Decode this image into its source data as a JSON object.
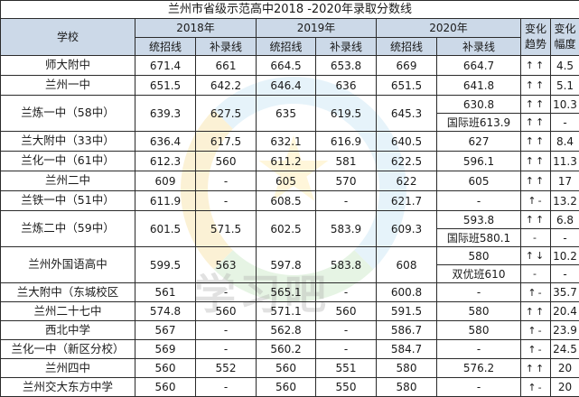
{
  "title": "兰州市省级示范高中2018 -2020年录取分数线",
  "headers": {
    "school": "学校",
    "y2018": "2018年",
    "y2019": "2019年",
    "y2020": "2020年",
    "trend": "变化\n趋势",
    "range": "变化\n幅度",
    "tongzhao": "统招线",
    "bulu": "补录线"
  },
  "watermark": "学习吧",
  "rows": [
    {
      "school": "师大附中",
      "t18": "671.4",
      "b18": "661",
      "t19": "664.5",
      "b19": "653.8",
      "t20": "669",
      "b20": "664.7",
      "trend": "↑↑",
      "range": "4.5"
    },
    {
      "school": "兰州一中",
      "t18": "651.5",
      "b18": "642.2",
      "t19": "646.4",
      "b19": "636",
      "t20": "651.5",
      "b20": "641.8",
      "trend": "↑↑",
      "range": "5.1"
    },
    {
      "school": "兰炼一中（58中）",
      "t18": "639.3",
      "b18": "627.5",
      "t19": "635",
      "b19": "619.5",
      "t20": "645.3",
      "b20a": "630.8",
      "b20b": "国际班613.9",
      "trend_a": "↑↑",
      "trend_b": "↑↑",
      "range_a": "10.3",
      "range_b": "-"
    },
    {
      "school": "兰大附中（33中）",
      "t18": "636.4",
      "b18": "617.5",
      "t19": "632.1",
      "b19": "616.9",
      "t20": "640.5",
      "b20": "627",
      "trend": "↑↑",
      "range": "8.4"
    },
    {
      "school": "兰化一中（61中）",
      "t18": "612.3",
      "b18": "560",
      "t19": "611.2",
      "b19": "581",
      "t20": "622.5",
      "b20": "596.1",
      "trend": "↑↑",
      "range": "11.3"
    },
    {
      "school": "兰州二中",
      "t18": "609",
      "b18": "-",
      "t19": "605",
      "b19": "570",
      "t20": "622",
      "b20": "605",
      "trend": "↑↑",
      "range": "17"
    },
    {
      "school": "兰铁一中（51中）",
      "t18": "611.9",
      "b18": "-",
      "t19": "608.5",
      "b19": "-",
      "t20": "621.7",
      "b20": "-",
      "trend": "↑-",
      "range": "13.2"
    },
    {
      "school": "兰炼二中（59中）",
      "t18": "601.5",
      "b18": "571.5",
      "t19": "602.5",
      "b19": "583.9",
      "t20": "609.3",
      "b20a": "593.8",
      "b20b": "国际班580.1",
      "trend_a": "↑↑",
      "trend_b": "-",
      "range_a": "6.8",
      "range_b": "-"
    },
    {
      "school": "兰州外国语高中",
      "t18": "599.5",
      "b18": "563",
      "t19": "597.8",
      "b19": "583.8",
      "t20": "608",
      "b20a": "580",
      "b20b": "双优班610",
      "trend_a": "↑↓",
      "trend_b": "-",
      "range_a": "10.2",
      "range_b": "-"
    },
    {
      "school": "兰大附中（东城校区",
      "t18": "561",
      "b18": "-",
      "t19": "565.1",
      "b19": "-",
      "t20": "600.8",
      "b20": "-",
      "trend": "↑-",
      "range": "35.7"
    },
    {
      "school": "兰州二十七中",
      "t18": "574.8",
      "b18": "560",
      "t19": "571.1",
      "b19": "560",
      "t20": "591.5",
      "b20": "580",
      "trend": "↑↑",
      "range": "20.4"
    },
    {
      "school": "西北中学",
      "t18": "567",
      "b18": "-",
      "t19": "562.8",
      "b19": "-",
      "t20": "586.7",
      "b20": "580",
      "trend": "↑-",
      "range": "23.9"
    },
    {
      "school": "兰化一中（新区分校）",
      "t18": "569",
      "b18": "-",
      "t19": "560.2",
      "b19": "-",
      "t20": "584.7",
      "b20": "-",
      "trend": "↑-",
      "range": "24.5"
    },
    {
      "school": "兰州四中",
      "t18": "560",
      "b18": "552",
      "t19": "560",
      "b19": "551",
      "t20": "580",
      "b20": "576.2",
      "trend": "↑↑",
      "range": "20"
    },
    {
      "school": "兰州交大东方中学",
      "t18": "560",
      "b18": "-",
      "t19": "560",
      "b19": "550",
      "t20": "580",
      "b20": "-",
      "trend": "↑-",
      "range": "20"
    }
  ]
}
